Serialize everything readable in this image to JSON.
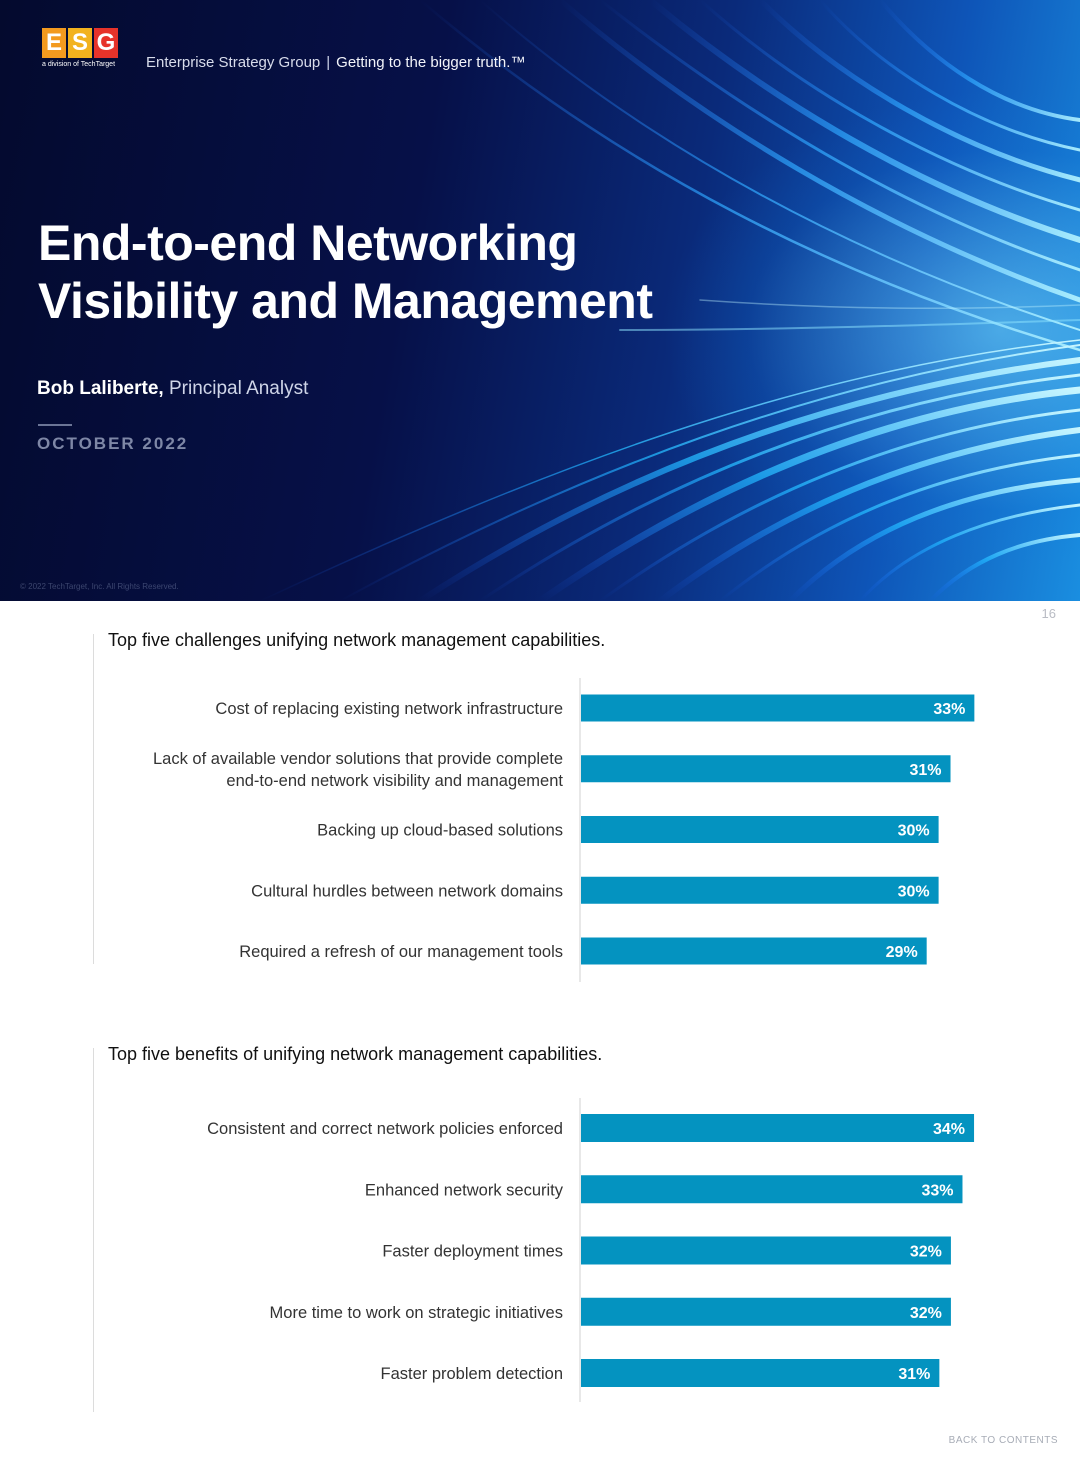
{
  "cover": {
    "logo_letters": [
      "E",
      "S",
      "G"
    ],
    "logo_subtitle": "a division of TechTarget",
    "brand": "Enterprise Strategy Group",
    "separator": "|",
    "slogan": "Getting to the bigger truth.™",
    "title_line1": "End-to-end Networking",
    "title_line2": "Visibility and Management",
    "author_name": "Bob Laliberte,",
    "author_role": "Principal Analyst",
    "date": "OCTOBER 2022",
    "copyright": "© 2022 TechTarget, Inc. All Rights Reserved."
  },
  "page": {
    "number": "16",
    "back_link": "BACK TO CONTENTS"
  },
  "colors": {
    "bar": "#0493c0",
    "cover_dark": "#061048",
    "cover_light": "#1a8ee0"
  },
  "chart_data": [
    {
      "type": "bar",
      "orientation": "horizontal",
      "title": "Top five challenges unifying network management capabilities.",
      "categories": [
        [
          "Cost of replacing existing network infrastructure"
        ],
        [
          "Lack of available vendor solutions that provide complete",
          "end-to-end network visibility and management"
        ],
        [
          "Backing up cloud-based solutions"
        ],
        [
          "Cultural hurdles between network domains"
        ],
        [
          "Required a refresh of our management tools"
        ]
      ],
      "values": [
        33,
        31,
        30,
        30,
        29
      ],
      "value_labels": [
        "33%",
        "31%",
        "30%",
        "30%",
        "29%"
      ],
      "xlim": [
        0,
        40
      ],
      "grid": false
    },
    {
      "type": "bar",
      "orientation": "horizontal",
      "title": "Top five benefits of unifying network management capabilities.",
      "categories": [
        [
          "Consistent and correct network policies enforced"
        ],
        [
          "Enhanced network security"
        ],
        [
          "Faster deployment times"
        ],
        [
          "More time to work on strategic initiatives"
        ],
        [
          "Faster problem detection"
        ]
      ],
      "values": [
        34,
        33,
        32,
        32,
        31
      ],
      "value_labels": [
        "34%",
        "33%",
        "32%",
        "32%",
        "31%"
      ],
      "xlim": [
        0,
        40
      ],
      "grid": false
    }
  ]
}
